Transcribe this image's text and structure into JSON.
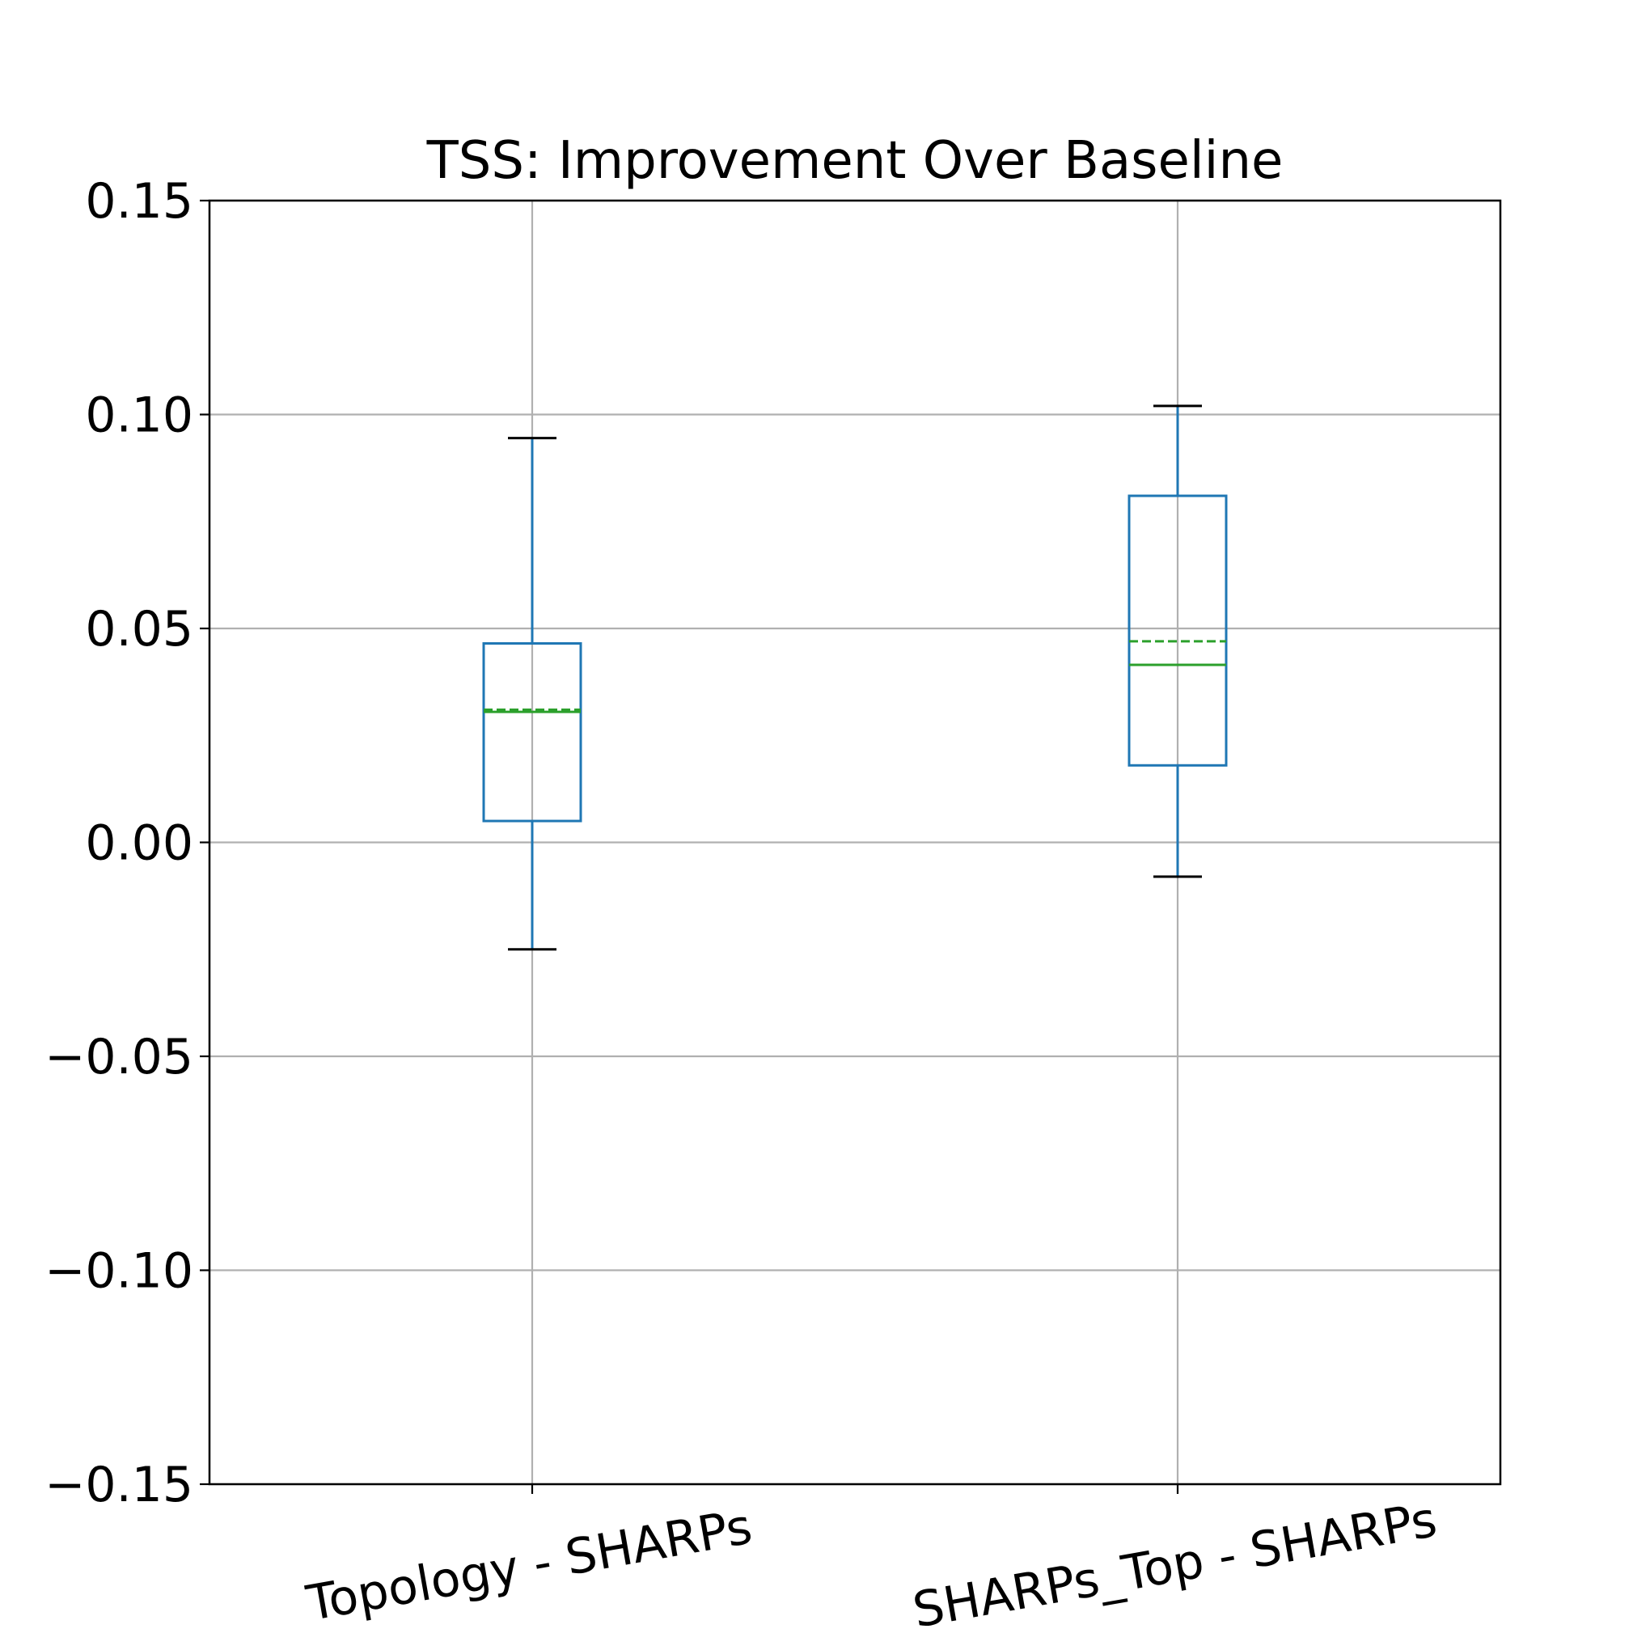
{
  "chart_data": {
    "type": "box",
    "title": "TSS: Improvement Over Baseline",
    "xlabel": "",
    "ylabel": "",
    "ylim": [
      -0.15,
      0.15
    ],
    "yticks": [
      -0.15,
      -0.1,
      -0.05,
      0.0,
      0.05,
      0.1,
      0.15
    ],
    "ytick_labels": [
      "−0.15",
      "−0.10",
      "−0.05",
      "0.00",
      "0.05",
      "0.10",
      "0.15"
    ],
    "grid": true,
    "categories": [
      "Topology - SHARPs",
      "SHARPs_Top - SHARPs"
    ],
    "boxes": [
      {
        "label": "Topology - SHARPs",
        "whisker_low": -0.025,
        "q1": 0.005,
        "median": 0.0305,
        "mean": 0.031,
        "q3": 0.0465,
        "whisker_high": 0.0945
      },
      {
        "label": "SHARPs_Top - SHARPs",
        "whisker_low": -0.008,
        "q1": 0.018,
        "median": 0.0415,
        "mean": 0.047,
        "q3": 0.081,
        "whisker_high": 0.102
      }
    ],
    "colors": {
      "box": "#1f77b4",
      "median": "#2ca02c",
      "mean": "#2ca02c",
      "cap": "#000000",
      "grid": "#b0b0b0",
      "axis": "#000000"
    }
  }
}
